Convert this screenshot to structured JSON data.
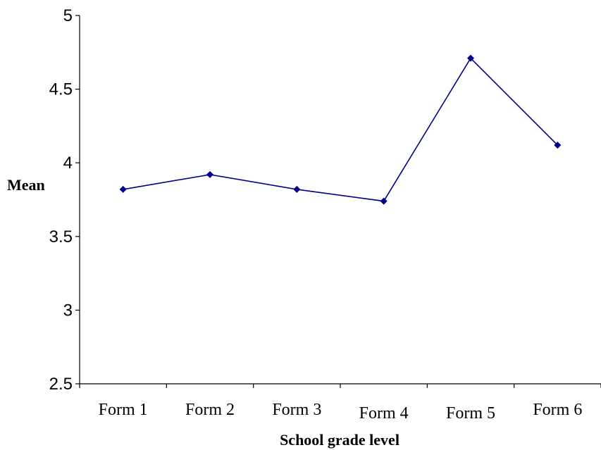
{
  "chart_data": {
    "type": "line",
    "title": "",
    "xlabel": "School grade level",
    "ylabel": "Mean",
    "categories": [
      "Form 1",
      "Form 2",
      "Form 3",
      "Form 4",
      "Form 5",
      "Form 6"
    ],
    "series": [
      {
        "values": [
          3.82,
          3.92,
          3.82,
          3.74,
          4.71,
          4.12
        ]
      }
    ],
    "ylim": [
      2.5,
      5
    ],
    "yticks": [
      "2.5",
      "3",
      "3.5",
      "4",
      "4.5",
      "5"
    ],
    "grid": false,
    "legend": "none",
    "colors": {
      "series": "#00008b",
      "axis": "#000000"
    }
  }
}
